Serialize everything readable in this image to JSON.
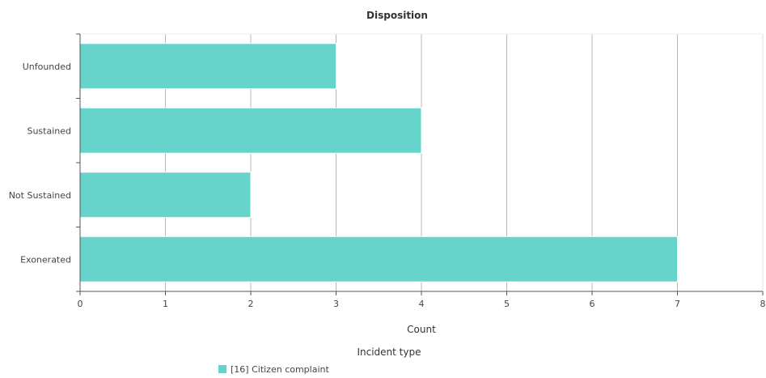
{
  "chart_data": {
    "type": "bar",
    "orientation": "horizontal",
    "title": "Disposition",
    "categories": [
      "Unfounded",
      "Sustained",
      "Not Sustained",
      "Exonerated"
    ],
    "series": [
      {
        "name": "[16] Citizen complaint",
        "values": [
          3,
          4,
          2,
          7
        ],
        "color": "#66d4cb"
      }
    ],
    "xlabel": "Count",
    "ylabel": "",
    "xlim": [
      0,
      8
    ],
    "xticks": [
      "0",
      "1",
      "2",
      "3",
      "4",
      "5",
      "6",
      "7",
      "8"
    ],
    "grid": true,
    "legend_title": "Incident type",
    "legend_position": "bottom"
  }
}
